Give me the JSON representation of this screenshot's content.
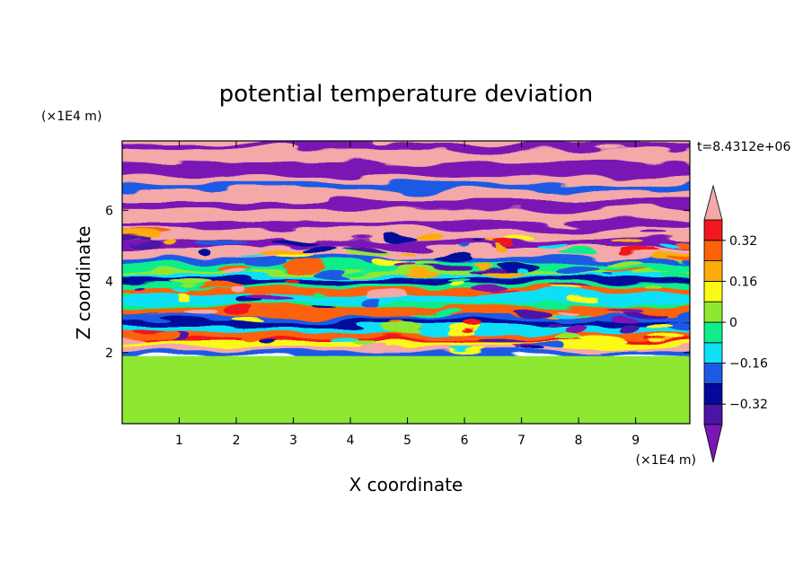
{
  "figure": {
    "title": "potential temperature deviation",
    "time_label": "t=8.4312e+06"
  },
  "chart_data": {
    "type": "heatmap",
    "title": "potential temperature deviation",
    "xlabel": "X coordinate",
    "ylabel": "Z coordinate",
    "x_unit": "(×1E4 m)",
    "y_unit": "(×1E4 m)",
    "xlim": [
      0,
      9.95
    ],
    "ylim": [
      0,
      7.95
    ],
    "x_ticks": [
      1,
      2,
      3,
      4,
      5,
      6,
      7,
      8,
      9
    ],
    "y_ticks": [
      2,
      4,
      6
    ],
    "grid": false,
    "colorbar": {
      "levels": [
        -0.48,
        -0.4,
        -0.32,
        -0.24,
        -0.16,
        -0.08,
        0,
        0.08,
        0.16,
        0.24,
        0.32,
        0.4,
        0.48
      ],
      "colors": [
        "#7a17b4",
        "#4a14a6",
        "#06089c",
        "#1c5ae6",
        "#10e0f6",
        "#10ee8a",
        "#8ee832",
        "#fafa16",
        "#fcac0a",
        "#fc6208",
        "#f2181e",
        "#f4a8a8"
      ],
      "labels": [
        {
          "value": 0.32,
          "text": "0.32"
        },
        {
          "value": 0.16,
          "text": "0.16"
        },
        {
          "value": 0,
          "text": "0"
        },
        {
          "value": -0.16,
          "text": "−0.16"
        },
        {
          "value": -0.32,
          "text": "−0.32"
        }
      ],
      "extend": "both"
    },
    "description_regions": [
      {
        "z_range": [
          0,
          1.9
        ],
        "dominant_values": [
          0,
          0.05
        ]
      },
      {
        "z_range": [
          1.9,
          4.6
        ],
        "dominant_values": [
          -0.4,
          0.4
        ]
      },
      {
        "z_range": [
          4.6,
          7.95
        ],
        "dominant_values": [
          -0.48,
          0.48
        ]
      }
    ]
  }
}
